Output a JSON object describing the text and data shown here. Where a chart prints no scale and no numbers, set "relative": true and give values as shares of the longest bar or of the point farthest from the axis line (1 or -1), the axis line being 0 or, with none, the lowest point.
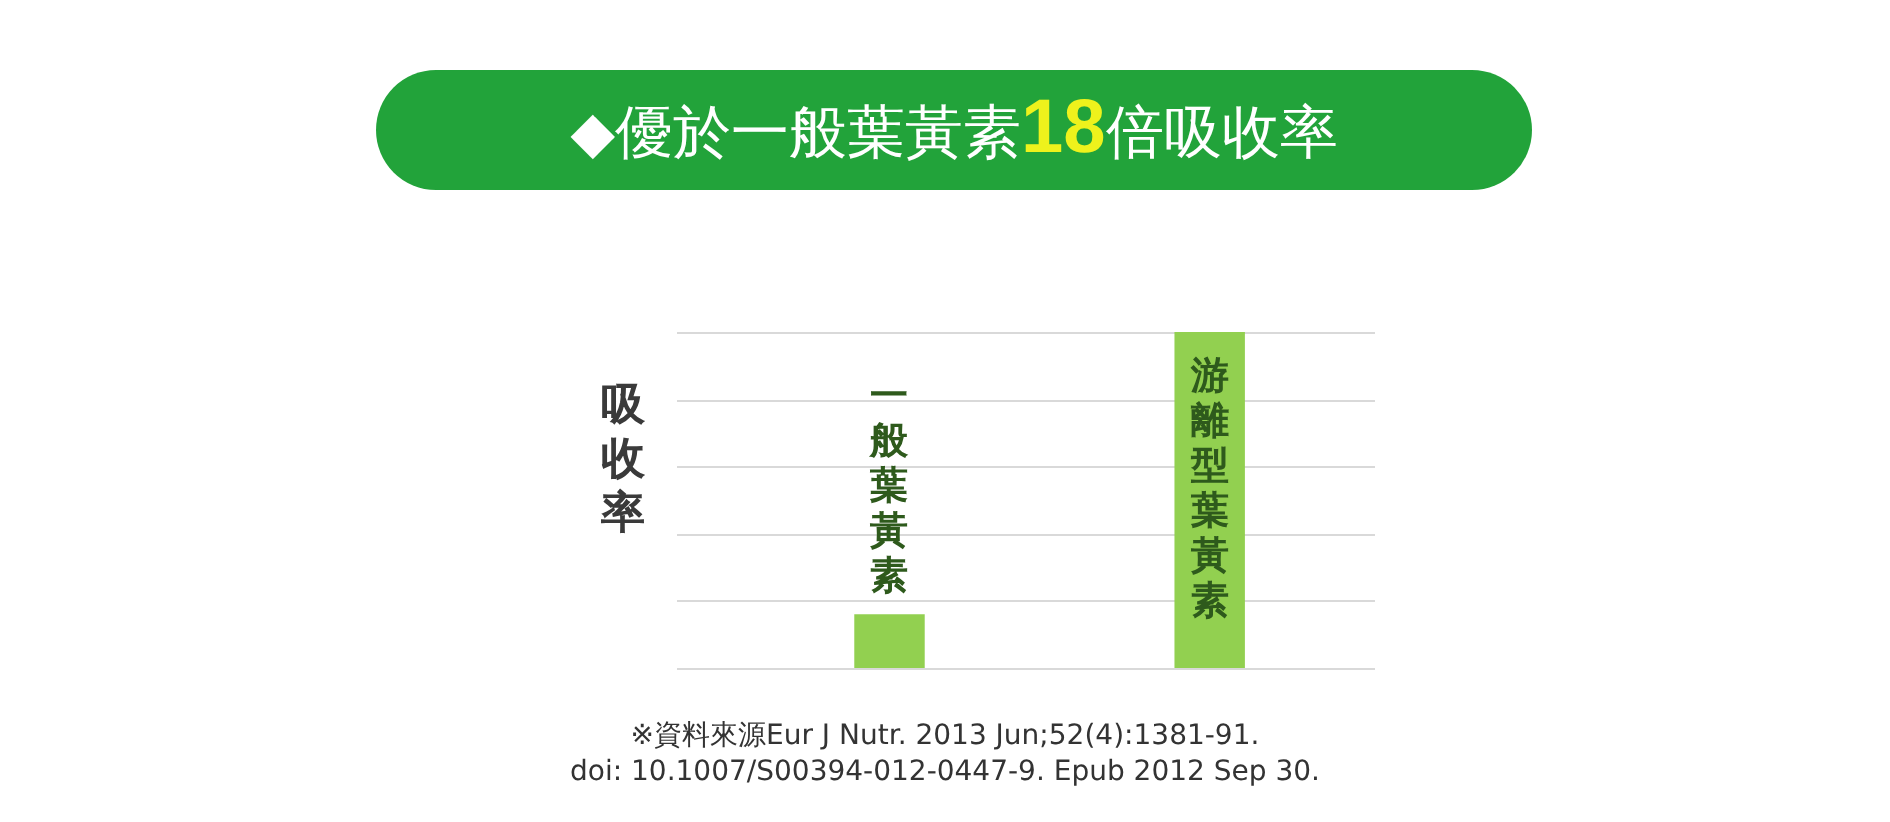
{
  "chart_data": {
    "type": "bar",
    "title": "◆優於一般葉黃素18倍吸收率",
    "ylabel": "吸收率",
    "categories": [
      "一般葉黃素",
      "游離型葉黃素"
    ],
    "values": [
      0.16,
      1
    ],
    "color": "#92d050",
    "relative": true,
    "grid": "y",
    "tick_labels": false,
    "annotations": [
      "※資料來源Eur J Nutr. 2013 Jun;52(4):1381-91.",
      "doi: 10.1007/S00394-012-0447-9. Epub 2012 Sep 30."
    ]
  }
}
